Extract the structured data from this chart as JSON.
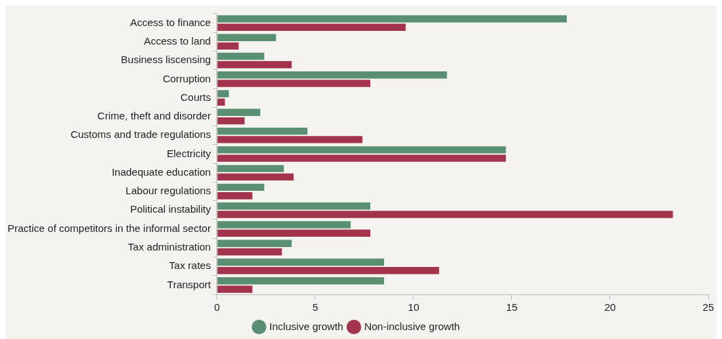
{
  "chart_data": {
    "type": "bar",
    "orientation": "horizontal",
    "categories": [
      "Access to finance",
      "Access to land",
      "Business liscensing",
      "Corruption",
      "Courts",
      "Crime, theft and disorder",
      "Customs and trade regulations",
      "Electricity",
      "Inadequate education",
      "Labour regulations",
      "Political instability",
      "Practice of competitors in the informal sector",
      "Tax administration",
      "Tax rates",
      "Transport"
    ],
    "series": [
      {
        "name": "Inclusive growth",
        "color": "#5b8f73",
        "values": [
          17.8,
          3.0,
          2.4,
          11.7,
          0.6,
          2.2,
          4.6,
          14.7,
          3.4,
          2.4,
          7.8,
          6.8,
          3.8,
          8.5,
          8.5
        ]
      },
      {
        "name": "Non-inclusive growth",
        "color": "#a3344e",
        "values": [
          9.6,
          1.1,
          3.8,
          7.8,
          0.4,
          1.4,
          7.4,
          14.7,
          3.9,
          1.8,
          23.2,
          7.8,
          3.3,
          11.3,
          1.8
        ]
      }
    ],
    "xlim": [
      0,
      25
    ],
    "xticks": [
      0,
      5,
      10,
      15,
      20,
      25
    ],
    "grid": false,
    "legend": "bottom"
  }
}
